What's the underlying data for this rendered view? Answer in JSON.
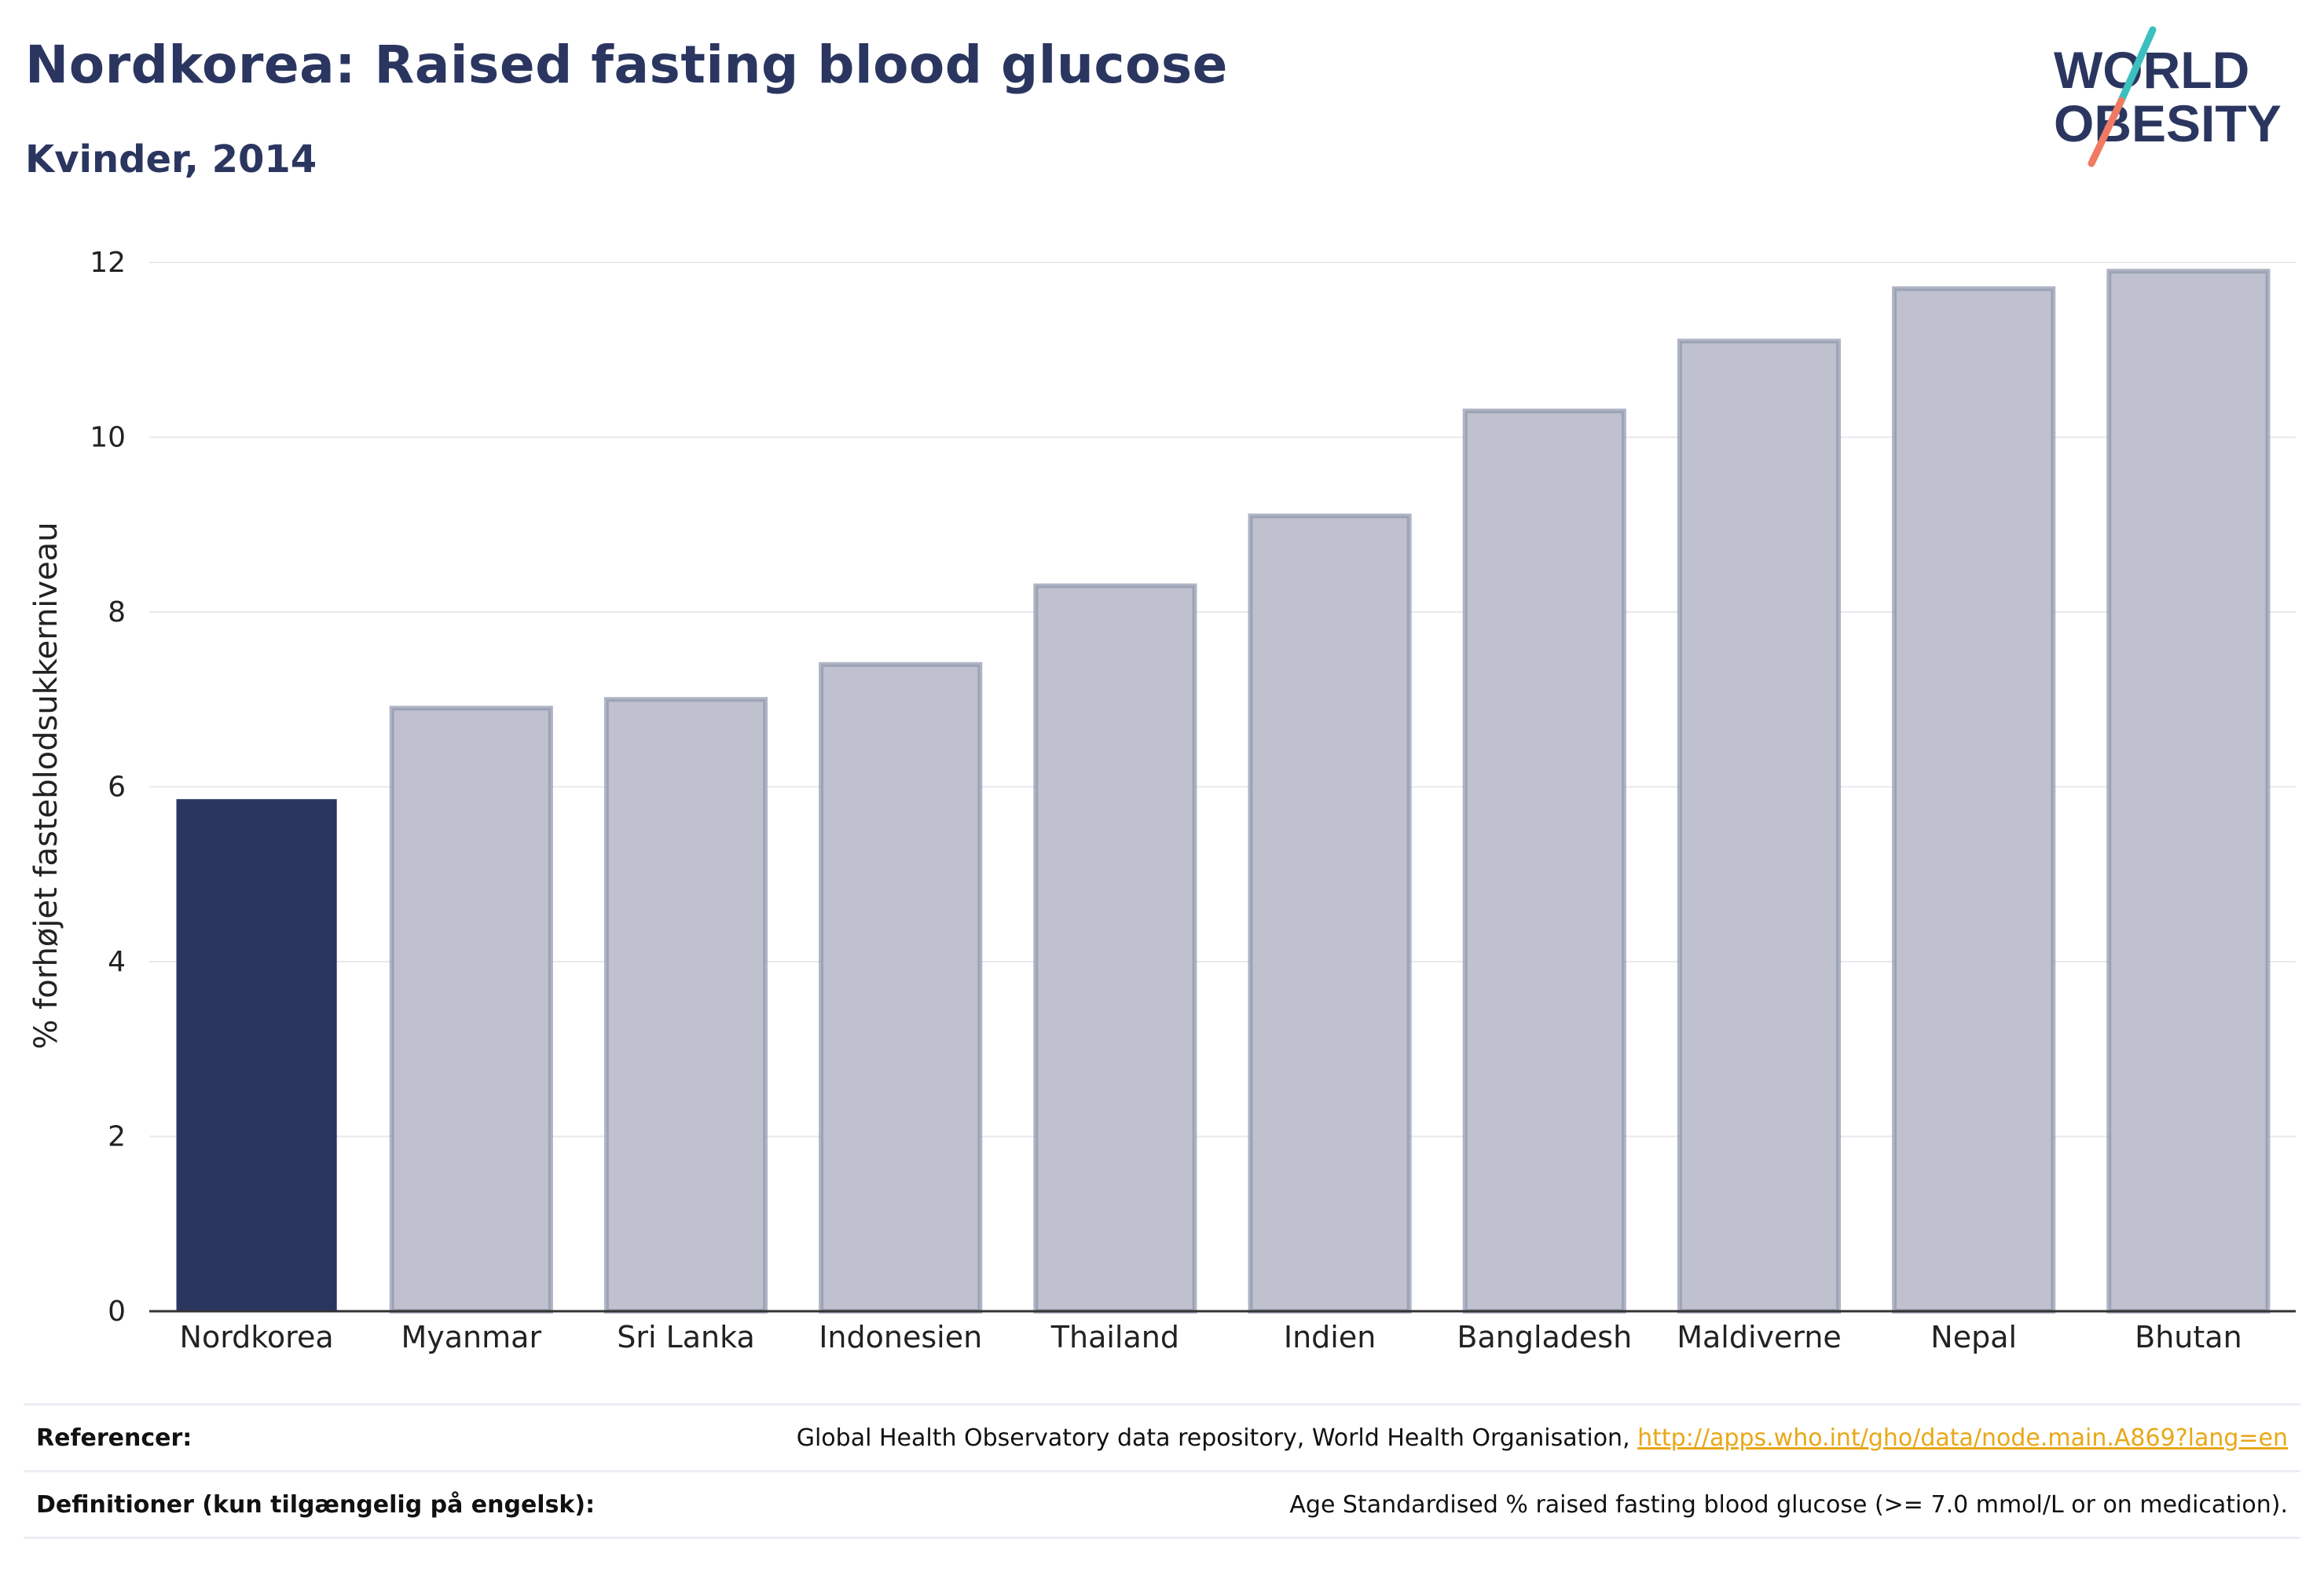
{
  "header": {
    "title": "Nordkorea: Raised fasting blood glucose",
    "subtitle": "Kvinder, 2014"
  },
  "logo": {
    "line1": "WORLD",
    "line2": "OBESITY"
  },
  "colors": {
    "highlight": "#2b3660",
    "bar_fill": "#bfc2ce",
    "bar_stroke": "#8e95ac",
    "grid": "#e8e9ee",
    "logo_teal": "#3bbfbf",
    "logo_coral": "#f07a62"
  },
  "chart_data": {
    "type": "bar",
    "ylabel": "% forhøjet fasteblodsukkerniveau",
    "ylim": [
      0,
      12
    ],
    "yticks": [
      0,
      2,
      4,
      6,
      8,
      10,
      12
    ],
    "grid": true,
    "categories": [
      "Nordkorea",
      "Myanmar",
      "Sri Lanka",
      "Indonesien",
      "Thailand",
      "Indien",
      "Bangladesh",
      "Maldiverne",
      "Nepal",
      "Bhutan"
    ],
    "values": [
      5.85,
      6.9,
      7.0,
      7.4,
      8.3,
      9.1,
      10.3,
      11.1,
      11.7,
      11.9
    ],
    "highlight": "Nordkorea"
  },
  "footer": {
    "references_label": "Referencer:",
    "references_text": "Global Health Observatory data repository, World Health Organisation, ",
    "references_link": "http://apps.who.int/gho/data/node.main.A869?lang=en",
    "definitions_label": "Definitioner (kun tilgængelig på engelsk):",
    "definitions_text": "Age Standardised % raised fasting blood glucose (>= 7.0 mmol/L or on medication)."
  }
}
